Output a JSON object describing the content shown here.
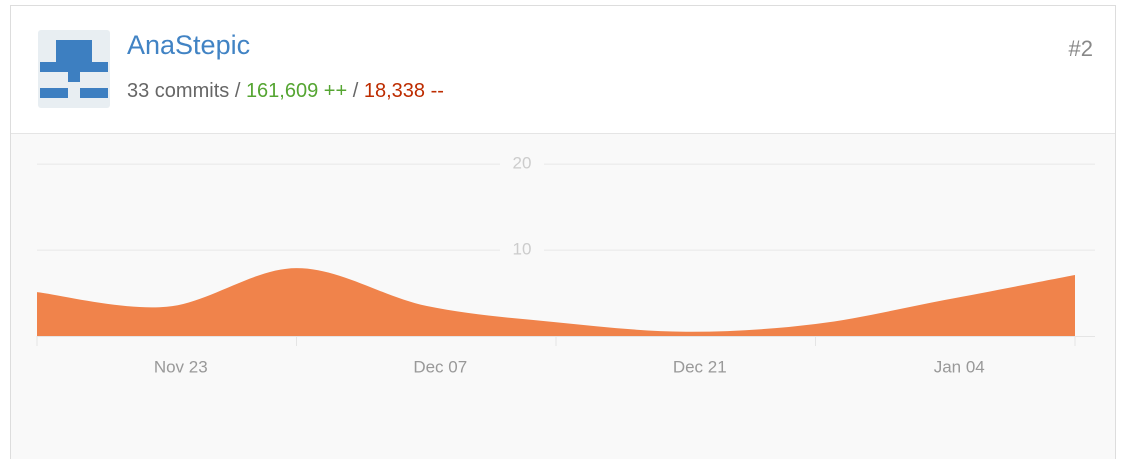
{
  "user": {
    "name": "AnaStepic",
    "commits": "33 commits",
    "separator": "/",
    "additions": "161,609 ++",
    "deletions": "18,338 --",
    "rank": "#2"
  },
  "chart_data": {
    "type": "area",
    "categories": [
      null,
      "Nov 23",
      null,
      "Dec 07",
      null,
      "Dec 21",
      null,
      "Jan 04",
      null
    ],
    "values": [
      5.1,
      3.4,
      7.9,
      3.5,
      1.6,
      0.5,
      1.4,
      4.2,
      7.1
    ],
    "color": "#f0834b",
    "ylim": [
      0,
      22
    ],
    "yticks": [
      10,
      20
    ],
    "grid": true
  }
}
